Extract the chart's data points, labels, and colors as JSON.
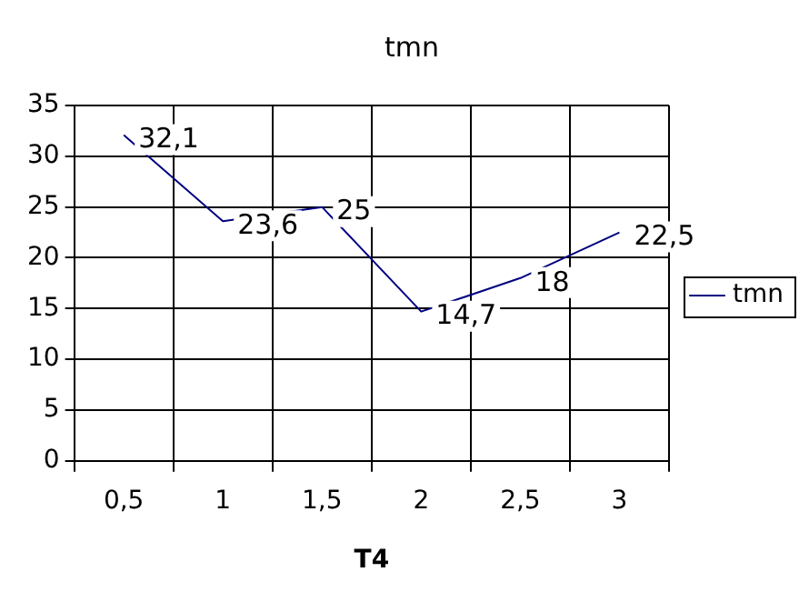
{
  "chart_data": {
    "type": "line",
    "title": "tmn",
    "xlabel": "T4",
    "categories": [
      "0,5",
      "1",
      "1,5",
      "2",
      "2,5",
      "3"
    ],
    "series": [
      {
        "name": "tmn",
        "color": "#000080",
        "values": [
          32.1,
          23.6,
          25,
          14.7,
          18,
          22.5
        ],
        "value_labels": [
          "32,1",
          "23,6",
          "25",
          "14,7",
          "18",
          "22,5"
        ]
      }
    ],
    "ylim": [
      0,
      35
    ],
    "yticks": [
      0,
      5,
      10,
      15,
      20,
      25,
      30,
      35
    ],
    "grid": true,
    "legend": "right",
    "marker": "none",
    "line_style": "solid"
  }
}
